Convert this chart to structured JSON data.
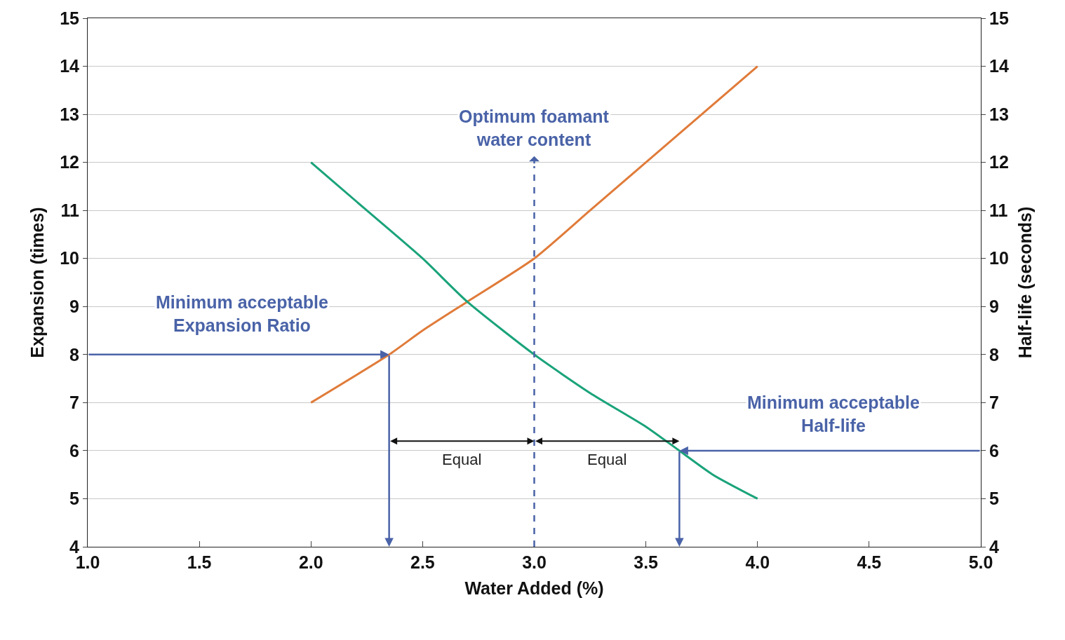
{
  "chart_data": {
    "type": "line",
    "xlabel": "Water Added (%)",
    "ylabel": "Expansion (times)",
    "y2label": "Half-life (seconds)",
    "xlim": [
      1.0,
      5.0
    ],
    "xticks": [
      {
        "value": 1.0,
        "label": "1.0"
      },
      {
        "value": 1.5,
        "label": "1.5"
      },
      {
        "value": 2.0,
        "label": "2.0"
      },
      {
        "value": 2.5,
        "label": "2.5"
      },
      {
        "value": 3.0,
        "label": "3.0"
      },
      {
        "value": 3.5,
        "label": "3.5"
      },
      {
        "value": 4.0,
        "label": "4.0"
      },
      {
        "value": 4.5,
        "label": "4.5"
      },
      {
        "value": 5.0,
        "label": "5.0"
      }
    ],
    "ylim": [
      4,
      15
    ],
    "yticks": [
      4,
      5,
      6,
      7,
      8,
      9,
      10,
      11,
      12,
      13,
      14,
      15
    ],
    "y2lim": [
      4,
      15
    ],
    "y2ticks": [
      4,
      5,
      6,
      7,
      8,
      9,
      10,
      11,
      12,
      13,
      14,
      15
    ],
    "grid": "y",
    "legend": false,
    "marker": "none",
    "line_style": "solid",
    "series": [
      {
        "color": "#e07b39",
        "x": [
          2.0,
          2.35,
          2.5,
          2.7,
          3.0,
          3.25,
          3.5,
          3.75,
          4.0
        ],
        "values": [
          7,
          8,
          8.5,
          9.1,
          10,
          11,
          12,
          13,
          14
        ]
      },
      {
        "color": "#1aa37a",
        "axis": "y2",
        "x": [
          2.0,
          2.25,
          2.5,
          2.7,
          3.0,
          3.25,
          3.5,
          3.65,
          3.8,
          4.0
        ],
        "values": [
          12,
          11,
          10,
          9.1,
          8,
          7.2,
          6.5,
          6,
          5.5,
          5
        ]
      }
    ],
    "ref_lines": [
      {
        "axis": "x",
        "value": 3.0,
        "label": "Optimum foamant\nwater content",
        "color": "#4a63a8",
        "line_style": "dashed"
      },
      {
        "axis": "y",
        "value": 8,
        "label": "Minimum acceptable\nExpansion Ratio",
        "color": "#4a63a8"
      },
      {
        "axis": "y2",
        "value": 6,
        "label": "Minimum acceptable\nHalf-life",
        "color": "#4a63a8"
      }
    ],
    "annotations": [
      "Equal",
      "Equal"
    ]
  }
}
